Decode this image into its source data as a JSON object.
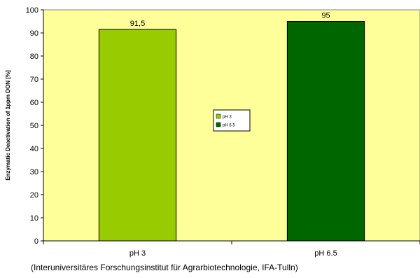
{
  "chart_data": {
    "type": "bar",
    "categories": [
      "pH 3",
      "pH 6.5"
    ],
    "series": [
      {
        "name": "pH 3",
        "values": [
          91.5,
          null
        ],
        "color": "#99cc00"
      },
      {
        "name": "pH 6.5",
        "values": [
          null,
          95
        ],
        "color": "#006600"
      }
    ],
    "data_labels": [
      "91,5",
      "95"
    ],
    "ylabel": "Enzymatic Deactivation of 1ppm DON [%]",
    "ylim": [
      0,
      100
    ],
    "yticks": [
      0,
      10,
      20,
      30,
      40,
      50,
      60,
      70,
      80,
      90,
      100
    ],
    "grid": false,
    "legend_position": "center",
    "plot_background": "#ffff99"
  },
  "source_note": "(Interuniversitäres Forschungsinstitut für Agrarbiotechnologie, IFA-Tulln)"
}
